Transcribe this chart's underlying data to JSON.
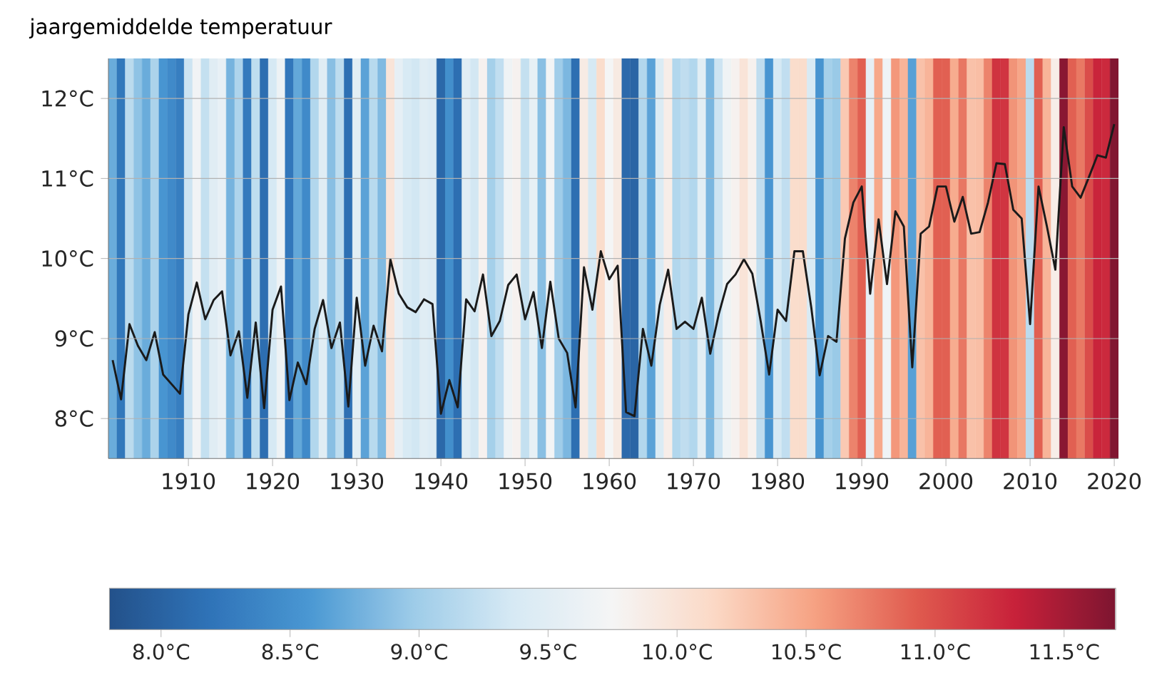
{
  "chart_data": {
    "type": "line",
    "ylabel": "jaargemiddelde temperatuur",
    "x": [
      1901,
      1902,
      1903,
      1904,
      1905,
      1906,
      1907,
      1908,
      1909,
      1910,
      1911,
      1912,
      1913,
      1914,
      1915,
      1916,
      1917,
      1918,
      1919,
      1920,
      1921,
      1922,
      1923,
      1924,
      1925,
      1926,
      1927,
      1928,
      1929,
      1930,
      1931,
      1932,
      1933,
      1934,
      1935,
      1936,
      1937,
      1938,
      1939,
      1940,
      1941,
      1942,
      1943,
      1944,
      1945,
      1946,
      1947,
      1948,
      1949,
      1950,
      1951,
      1952,
      1953,
      1954,
      1955,
      1956,
      1957,
      1958,
      1959,
      1960,
      1961,
      1962,
      1963,
      1964,
      1965,
      1966,
      1967,
      1968,
      1969,
      1970,
      1971,
      1972,
      1973,
      1974,
      1975,
      1976,
      1977,
      1978,
      1979,
      1980,
      1981,
      1982,
      1983,
      1984,
      1985,
      1986,
      1987,
      1988,
      1989,
      1990,
      1991,
      1992,
      1993,
      1994,
      1995,
      1996,
      1997,
      1998,
      1999,
      2000,
      2001,
      2002,
      2003,
      2004,
      2005,
      2006,
      2007,
      2008,
      2009,
      2010,
      2011,
      2012,
      2013,
      2014,
      2015,
      2016,
      2017,
      2018,
      2019,
      2020
    ],
    "series": [
      {
        "type": "line",
        "color": "#1a1a1a",
        "values": [
          8.73,
          8.24,
          9.18,
          8.91,
          8.73,
          9.08,
          8.55,
          8.43,
          8.31,
          9.3,
          9.7,
          9.24,
          9.48,
          9.59,
          8.79,
          9.09,
          8.26,
          9.2,
          8.13,
          9.36,
          9.65,
          8.23,
          8.7,
          8.43,
          9.12,
          9.48,
          8.88,
          9.2,
          8.15,
          9.51,
          8.66,
          9.16,
          8.84,
          9.99,
          9.56,
          9.39,
          9.33,
          9.49,
          9.43,
          8.06,
          8.48,
          8.14,
          9.49,
          9.34,
          9.8,
          9.03,
          9.22,
          9.67,
          9.8,
          9.24,
          9.58,
          8.88,
          9.71,
          9.0,
          8.82,
          8.14,
          9.89,
          9.36,
          10.09,
          9.74,
          9.91,
          8.08,
          8.03,
          9.12,
          8.66,
          9.42,
          9.86,
          9.12,
          9.21,
          9.12,
          9.51,
          8.81,
          9.3,
          9.68,
          9.8,
          9.99,
          9.81,
          9.21,
          8.55,
          9.36,
          9.22,
          10.09,
          10.09,
          9.39,
          8.54,
          9.03,
          8.96,
          10.25,
          10.7,
          10.9,
          9.56,
          10.49,
          9.68,
          10.59,
          10.4,
          8.64,
          10.31,
          10.4,
          10.9,
          10.9,
          10.46,
          10.77,
          10.31,
          10.33,
          10.7,
          11.19,
          11.18,
          10.61,
          10.5,
          9.18,
          10.9,
          10.4,
          9.86,
          11.64,
          10.9,
          10.76,
          11.02,
          11.29,
          11.26,
          11.68
        ]
      }
    ],
    "xlim": [
      1900.5,
      2020.5
    ],
    "ylim": [
      7.5,
      12.5
    ],
    "xticks": [
      1910,
      1920,
      1930,
      1940,
      1950,
      1960,
      1970,
      1980,
      1990,
      2000,
      2010,
      2020
    ],
    "yticks": [
      {
        "value": 8,
        "label": "8°C"
      },
      {
        "value": 9,
        "label": "9°C"
      },
      {
        "value": 10,
        "label": "10°C"
      },
      {
        "value": 11,
        "label": "11°C"
      },
      {
        "value": 12,
        "label": "12°C"
      }
    ],
    "grid": "y",
    "bands": [
      {
        "axis": "x",
        "from": 1900.5,
        "to": 1901.5
      },
      {
        "axis": "x",
        "from": 1901.5,
        "to": 1902.5
      },
      {
        "axis": "x",
        "from": 1902.5,
        "to": 1903.5
      },
      {
        "axis": "x",
        "from": 1903.5,
        "to": 1904.5
      },
      {
        "axis": "x",
        "from": 1904.5,
        "to": 1905.5
      },
      {
        "axis": "x",
        "from": 1905.5,
        "to": 1906.5
      },
      {
        "axis": "x",
        "from": 1906.5,
        "to": 1907.5
      },
      {
        "axis": "x",
        "from": 1907.5,
        "to": 1908.5
      },
      {
        "axis": "x",
        "from": 1908.5,
        "to": 1909.5
      },
      {
        "axis": "x",
        "from": 1909.5,
        "to": 1910.5
      },
      {
        "axis": "x",
        "from": 1910.5,
        "to": 1911.5
      },
      {
        "axis": "x",
        "from": 1911.5,
        "to": 1912.5
      },
      {
        "axis": "x",
        "from": 1912.5,
        "to": 1913.5
      },
      {
        "axis": "x",
        "from": 1913.5,
        "to": 1914.5
      },
      {
        "axis": "x",
        "from": 1914.5,
        "to": 1915.5
      },
      {
        "axis": "x",
        "from": 1915.5,
        "to": 1916.5
      },
      {
        "axis": "x",
        "from": 1916.5,
        "to": 1917.5
      },
      {
        "axis": "x",
        "from": 1917.5,
        "to": 1918.5
      },
      {
        "axis": "x",
        "from": 1918.5,
        "to": 1919.5
      },
      {
        "axis": "x",
        "from": 1919.5,
        "to": 1920.5
      },
      {
        "axis": "x",
        "from": 1920.5,
        "to": 1921.5
      },
      {
        "axis": "x",
        "from": 1921.5,
        "to": 1922.5
      },
      {
        "axis": "x",
        "from": 1922.5,
        "to": 1923.5
      },
      {
        "axis": "x",
        "from": 1923.5,
        "to": 1924.5
      },
      {
        "axis": "x",
        "from": 1924.5,
        "to": 1925.5
      },
      {
        "axis": "x",
        "from": 1925.5,
        "to": 1926.5
      },
      {
        "axis": "x",
        "from": 1926.5,
        "to": 1927.5
      },
      {
        "axis": "x",
        "from": 1927.5,
        "to": 1928.5
      },
      {
        "axis": "x",
        "from": 1928.5,
        "to": 1929.5
      },
      {
        "axis": "x",
        "from": 1929.5,
        "to": 1930.5
      },
      {
        "axis": "x",
        "from": 1930.5,
        "to": 1931.5
      },
      {
        "axis": "x",
        "from": 1931.5,
        "to": 1932.5
      },
      {
        "axis": "x",
        "from": 1932.5,
        "to": 1933.5
      },
      {
        "axis": "x",
        "from": 1933.5,
        "to": 1934.5
      },
      {
        "axis": "x",
        "from": 1934.5,
        "to": 1935.5
      },
      {
        "axis": "x",
        "from": 1935.5,
        "to": 1936.5
      },
      {
        "axis": "x",
        "from": 1936.5,
        "to": 1937.5
      },
      {
        "axis": "x",
        "from": 1937.5,
        "to": 1938.5
      },
      {
        "axis": "x",
        "from": 1938.5,
        "to": 1939.5
      },
      {
        "axis": "x",
        "from": 1939.5,
        "to": 1940.5
      },
      {
        "axis": "x",
        "from": 1940.5,
        "to": 1941.5
      },
      {
        "axis": "x",
        "from": 1941.5,
        "to": 1942.5
      },
      {
        "axis": "x",
        "from": 1942.5,
        "to": 1943.5
      },
      {
        "axis": "x",
        "from": 1943.5,
        "to": 1944.5
      },
      {
        "axis": "x",
        "from": 1944.5,
        "to": 1945.5
      },
      {
        "axis": "x",
        "from": 1945.5,
        "to": 1946.5
      },
      {
        "axis": "x",
        "from": 1946.5,
        "to": 1947.5
      },
      {
        "axis": "x",
        "from": 1947.5,
        "to": 1948.5
      },
      {
        "axis": "x",
        "from": 1948.5,
        "to": 1949.5
      },
      {
        "axis": "x",
        "from": 1949.5,
        "to": 1950.5
      },
      {
        "axis": "x",
        "from": 1950.5,
        "to": 1951.5
      },
      {
        "axis": "x",
        "from": 1951.5,
        "to": 1952.5
      },
      {
        "axis": "x",
        "from": 1952.5,
        "to": 1953.5
      },
      {
        "axis": "x",
        "from": 1953.5,
        "to": 1954.5
      },
      {
        "axis": "x",
        "from": 1954.5,
        "to": 1955.5
      },
      {
        "axis": "x",
        "from": 1955.5,
        "to": 1956.5
      },
      {
        "axis": "x",
        "from": 1956.5,
        "to": 1957.5
      },
      {
        "axis": "x",
        "from": 1957.5,
        "to": 1958.5
      },
      {
        "axis": "x",
        "from": 1958.5,
        "to": 1959.5
      },
      {
        "axis": "x",
        "from": 1959.5,
        "to": 1960.5
      },
      {
        "axis": "x",
        "from": 1960.5,
        "to": 1961.5
      },
      {
        "axis": "x",
        "from": 1961.5,
        "to": 1962.5
      },
      {
        "axis": "x",
        "from": 1962.5,
        "to": 1963.5
      },
      {
        "axis": "x",
        "from": 1963.5,
        "to": 1964.5
      },
      {
        "axis": "x",
        "from": 1964.5,
        "to": 1965.5
      },
      {
        "axis": "x",
        "from": 1965.5,
        "to": 1966.5
      },
      {
        "axis": "x",
        "from": 1966.5,
        "to": 1967.5
      },
      {
        "axis": "x",
        "from": 1967.5,
        "to": 1968.5
      },
      {
        "axis": "x",
        "from": 1968.5,
        "to": 1969.5
      },
      {
        "axis": "x",
        "from": 1969.5,
        "to": 1970.5
      },
      {
        "axis": "x",
        "from": 1970.5,
        "to": 1971.5
      },
      {
        "axis": "x",
        "from": 1971.5,
        "to": 1972.5
      },
      {
        "axis": "x",
        "from": 1972.5,
        "to": 1973.5
      },
      {
        "axis": "x",
        "from": 1973.5,
        "to": 1974.5
      },
      {
        "axis": "x",
        "from": 1974.5,
        "to": 1975.5
      },
      {
        "axis": "x",
        "from": 1975.5,
        "to": 1976.5
      },
      {
        "axis": "x",
        "from": 1976.5,
        "to": 1977.5
      },
      {
        "axis": "x",
        "from": 1977.5,
        "to": 1978.5
      },
      {
        "axis": "x",
        "from": 1978.5,
        "to": 1979.5
      },
      {
        "axis": "x",
        "from": 1979.5,
        "to": 1980.5
      },
      {
        "axis": "x",
        "from": 1980.5,
        "to": 1981.5
      },
      {
        "axis": "x",
        "from": 1981.5,
        "to": 1982.5
      },
      {
        "axis": "x",
        "from": 1982.5,
        "to": 1983.5
      },
      {
        "axis": "x",
        "from": 1983.5,
        "to": 1984.5
      },
      {
        "axis": "x",
        "from": 1984.5,
        "to": 1985.5
      },
      {
        "axis": "x",
        "from": 1985.5,
        "to": 1986.5
      },
      {
        "axis": "x",
        "from": 1986.5,
        "to": 1987.5
      },
      {
        "axis": "x",
        "from": 1987.5,
        "to": 1988.5
      },
      {
        "axis": "x",
        "from": 1988.5,
        "to": 1989.5
      },
      {
        "axis": "x",
        "from": 1989.5,
        "to": 1990.5
      },
      {
        "axis": "x",
        "from": 1990.5,
        "to": 1991.5
      },
      {
        "axis": "x",
        "from": 1991.5,
        "to": 1992.5
      },
      {
        "axis": "x",
        "from": 1992.5,
        "to": 1993.5
      },
      {
        "axis": "x",
        "from": 1993.5,
        "to": 1994.5
      },
      {
        "axis": "x",
        "from": 1994.5,
        "to": 1995.5
      },
      {
        "axis": "x",
        "from": 1995.5,
        "to": 1996.5
      },
      {
        "axis": "x",
        "from": 1996.5,
        "to": 1997.5
      },
      {
        "axis": "x",
        "from": 1997.5,
        "to": 1998.5
      },
      {
        "axis": "x",
        "from": 1998.5,
        "to": 1999.5
      },
      {
        "axis": "x",
        "from": 1999.5,
        "to": 2000.5
      },
      {
        "axis": "x",
        "from": 2000.5,
        "to": 2001.5
      },
      {
        "axis": "x",
        "from": 2001.5,
        "to": 2002.5
      },
      {
        "axis": "x",
        "from": 2002.5,
        "to": 2003.5
      },
      {
        "axis": "x",
        "from": 2003.5,
        "to": 2004.5
      },
      {
        "axis": "x",
        "from": 2004.5,
        "to": 2005.5
      },
      {
        "axis": "x",
        "from": 2005.5,
        "to": 2006.5
      },
      {
        "axis": "x",
        "from": 2006.5,
        "to": 2007.5
      },
      {
        "axis": "x",
        "from": 2007.5,
        "to": 2008.5
      },
      {
        "axis": "x",
        "from": 2008.5,
        "to": 2009.5
      },
      {
        "axis": "x",
        "from": 2009.5,
        "to": 2010.5
      },
      {
        "axis": "x",
        "from": 2010.5,
        "to": 2011.5
      },
      {
        "axis": "x",
        "from": 2011.5,
        "to": 2012.5
      },
      {
        "axis": "x",
        "from": 2012.5,
        "to": 2013.5
      },
      {
        "axis": "x",
        "from": 2013.5,
        "to": 2014.5
      },
      {
        "axis": "x",
        "from": 2014.5,
        "to": 2015.5
      },
      {
        "axis": "x",
        "from": 2015.5,
        "to": 2016.5
      },
      {
        "axis": "x",
        "from": 2016.5,
        "to": 2017.5
      },
      {
        "axis": "x",
        "from": 2017.5,
        "to": 2018.5
      },
      {
        "axis": "x",
        "from": 2018.5,
        "to": 2019.5
      },
      {
        "axis": "x",
        "from": 2019.5,
        "to": 2020.5
      }
    ],
    "clim": [
      7.8,
      11.7
    ],
    "cticks": [
      {
        "value": 8.0,
        "label": "8.0°C"
      },
      {
        "value": 8.5,
        "label": "8.5°C"
      },
      {
        "value": 9.0,
        "label": "9.0°C"
      },
      {
        "value": 9.5,
        "label": "9.5°C"
      },
      {
        "value": 10.0,
        "label": "10.0°C"
      },
      {
        "value": 10.5,
        "label": "10.5°C"
      },
      {
        "value": 11.0,
        "label": "11.0°C"
      },
      {
        "value": 11.5,
        "label": "11.5°C"
      }
    ]
  }
}
